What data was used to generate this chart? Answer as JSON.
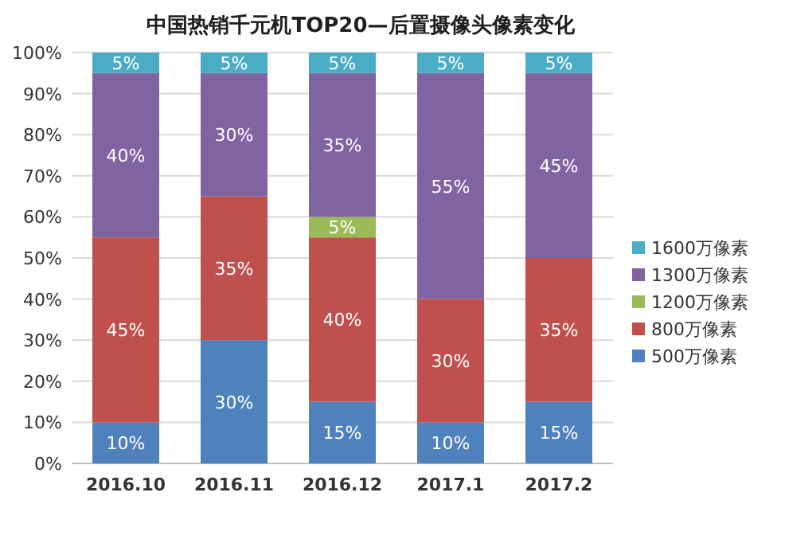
{
  "chart_data": {
    "type": "bar",
    "stacked": true,
    "title": "中国热销千元机TOP20—后置摄像头像素变化",
    "categories": [
      "2016.10",
      "2016.11",
      "2016.12",
      "2017.1",
      "2017.2"
    ],
    "series": [
      {
        "name": "500万像素",
        "color": "#4f81bd",
        "values": [
          10,
          30,
          15,
          10,
          15
        ],
        "value_labels": [
          "10%",
          "30%",
          "15%",
          "10%",
          "15%"
        ]
      },
      {
        "name": "800万像素",
        "color": "#c0504d",
        "values": [
          45,
          35,
          40,
          30,
          35
        ],
        "value_labels": [
          "45%",
          "35%",
          "40%",
          "30%",
          "35%"
        ]
      },
      {
        "name": "1200万像素",
        "color": "#9bbb59",
        "values": [
          null,
          null,
          5,
          null,
          null
        ],
        "value_labels": [
          null,
          null,
          "5%",
          null,
          null
        ]
      },
      {
        "name": "1300万像素",
        "color": "#8064a2",
        "values": [
          40,
          30,
          35,
          55,
          45
        ],
        "value_labels": [
          "40%",
          "30%",
          "35%",
          "55%",
          "45%"
        ]
      },
      {
        "name": "1600万像素",
        "color": "#4bacc6",
        "values": [
          5,
          5,
          5,
          5,
          5
        ],
        "value_labels": [
          "5%",
          "5%",
          "5%",
          "5%",
          "5%"
        ]
      }
    ],
    "ylim": [
      0,
      100
    ],
    "yticks": [
      {
        "value": 0,
        "label": "0%"
      },
      {
        "value": 10,
        "label": "10%"
      },
      {
        "value": 20,
        "label": "20%"
      },
      {
        "value": 30,
        "label": "30%"
      },
      {
        "value": 40,
        "label": "40%"
      },
      {
        "value": 50,
        "label": "50%"
      },
      {
        "value": 60,
        "label": "60%"
      },
      {
        "value": 70,
        "label": "70%"
      },
      {
        "value": 80,
        "label": "80%"
      },
      {
        "value": 90,
        "label": "90%"
      },
      {
        "value": 100,
        "label": "100%"
      }
    ],
    "grid": "y",
    "legend": "right"
  }
}
